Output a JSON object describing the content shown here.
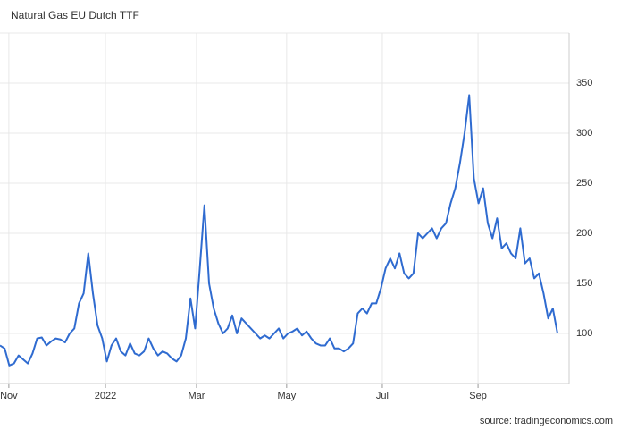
{
  "chart_data": {
    "type": "line",
    "title": "Natural Gas EU Dutch TTF",
    "source": "source: tradingeconomics.com",
    "series": [
      {
        "name": "Natural Gas EU Dutch TTF",
        "color": "#2f6bd0",
        "values": [
          88,
          85,
          68,
          70,
          78,
          74,
          70,
          80,
          95,
          96,
          88,
          92,
          95,
          94,
          91,
          100,
          105,
          130,
          140,
          180,
          140,
          108,
          95,
          72,
          88,
          95,
          82,
          78,
          90,
          80,
          78,
          82,
          95,
          85,
          78,
          82,
          80,
          75,
          72,
          78,
          95,
          135,
          105,
          165,
          228,
          150,
          125,
          110,
          100,
          105,
          118,
          100,
          115,
          110,
          105,
          100,
          95,
          98,
          95,
          100,
          105,
          95,
          100,
          102,
          105,
          98,
          102,
          95,
          90,
          88,
          88,
          95,
          85,
          85,
          82,
          85,
          90,
          120,
          125,
          120,
          130,
          130,
          145,
          165,
          175,
          165,
          180,
          160,
          155,
          160,
          200,
          195,
          200,
          205,
          195,
          205,
          210,
          230,
          245,
          270,
          300,
          338,
          255,
          230,
          245,
          210,
          195,
          215,
          185,
          190,
          180,
          175,
          205,
          170,
          175,
          155,
          160,
          140,
          115,
          125,
          100
        ]
      }
    ],
    "xlim": [
      0,
      122.5
    ],
    "xticks": [
      {
        "value": 1.9,
        "label": "Nov"
      },
      {
        "value": 22.7,
        "label": "2022"
      },
      {
        "value": 42.3,
        "label": "Mar"
      },
      {
        "value": 61.7,
        "label": "May"
      },
      {
        "value": 82.3,
        "label": "Jul"
      },
      {
        "value": 102.9,
        "label": "Sep"
      }
    ],
    "ylim": [
      50,
      400
    ],
    "yticks": [
      100,
      150,
      200,
      250,
      300,
      350
    ],
    "grid": true
  }
}
